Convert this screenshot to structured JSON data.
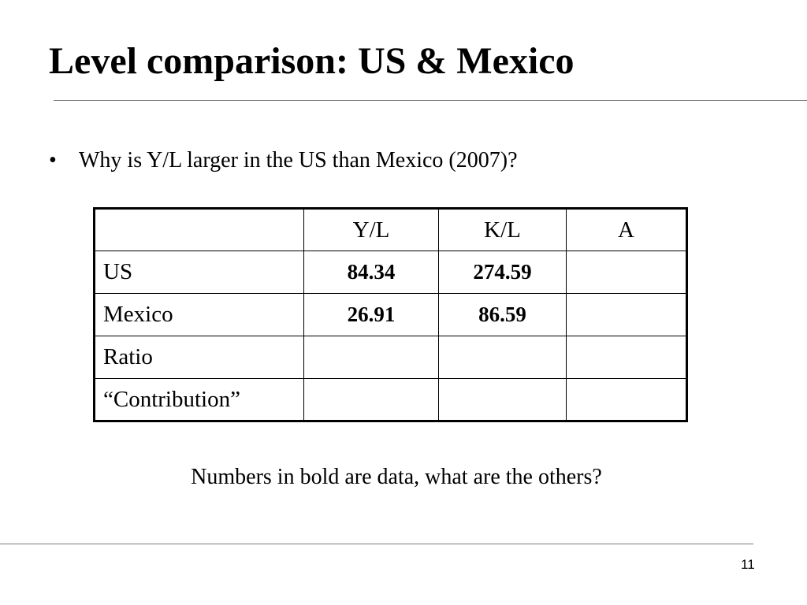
{
  "slide": {
    "title": "Level comparison:  US & Mexico",
    "bullet_symbol": "•",
    "bullet_text": "Why is Y/L larger in the US than Mexico (2007)?",
    "footnote": "Numbers in bold are data, what are the others?",
    "page_number": "11"
  },
  "table": {
    "headers": [
      "",
      "Y/L",
      "K/L",
      "A"
    ],
    "rows": [
      {
        "label": "US",
        "yl": "84.34",
        "kl": "274.59",
        "a": ""
      },
      {
        "label": "Mexico",
        "yl": "26.91",
        "kl": "86.59",
        "a": ""
      },
      {
        "label": "Ratio",
        "yl": "",
        "kl": "",
        "a": ""
      },
      {
        "label": "“Contribution”",
        "yl": "",
        "kl": "",
        "a": ""
      }
    ]
  }
}
